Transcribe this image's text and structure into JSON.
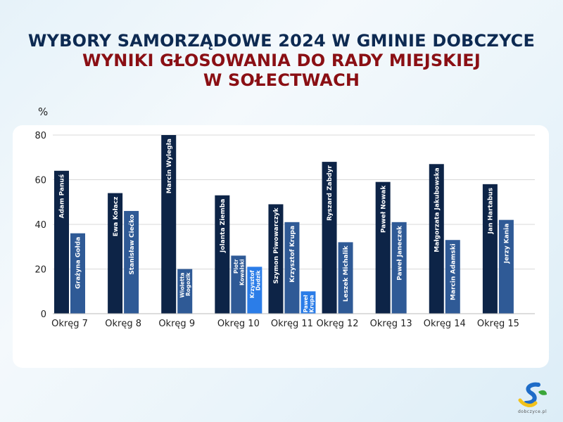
{
  "header": {
    "title_line1": "WYBORY SAMORZĄDOWE 2024 W GMINIE DOBCZYCE",
    "title_line2": "WYNIKI GŁOSOWANIA DO RADY MIEJSKIEJ",
    "title_line3": "W SOŁECTWACH"
  },
  "logo": {
    "text": "dobczyce.pl",
    "icon": "dobczyce-logo-icon"
  },
  "chart_data": {
    "type": "bar",
    "ylabel": "%",
    "ylim": [
      0,
      80
    ],
    "yticks": [
      0,
      20,
      40,
      60,
      80
    ],
    "grid": true,
    "legend": "none",
    "colors": {
      "winner": "#0d2447",
      "second": "#2f5a96",
      "third": "#2b7de8",
      "fourth": "#2f86f0"
    },
    "groups": [
      {
        "category": "Okręg 7",
        "bars": [
          {
            "label": "Adam Panuś",
            "value": 64
          },
          {
            "label": "Grażyna Gołda",
            "value": 36
          }
        ]
      },
      {
        "category": "Okręg 8",
        "bars": [
          {
            "label": "Ewa Kołacz",
            "value": 54
          },
          {
            "label": "Stanisław Ciećko",
            "value": 46
          }
        ]
      },
      {
        "category": "Okręg 9",
        "bars": [
          {
            "label": "Marcin Wyległa",
            "value": 80
          },
          {
            "label": "Wioletta Rogozik",
            "value": 20
          }
        ]
      },
      {
        "category": "Okręg 10",
        "bars": [
          {
            "label": "Jolanta Ziemba",
            "value": 53
          },
          {
            "label": "Piotr Kowalski",
            "value": 26
          },
          {
            "label": "Krzysztof Dudzik",
            "value": 21
          }
        ]
      },
      {
        "category": "Okręg 11",
        "bars": [
          {
            "label": "Szymon Piwowarczyk",
            "value": 49
          },
          {
            "label": "Krzysztof Krupa",
            "value": 41
          },
          {
            "label": "Paweł Krupa",
            "value": 10
          }
        ]
      },
      {
        "category": "Okręg 12",
        "bars": [
          {
            "label": "Ryszard Zabdyr",
            "value": 68
          },
          {
            "label": "Leszek Michalik",
            "value": 32
          }
        ]
      },
      {
        "category": "Okręg 13",
        "bars": [
          {
            "label": "Paweł Nowak",
            "value": 59
          },
          {
            "label": "Paweł Janeczek",
            "value": 41
          }
        ]
      },
      {
        "category": "Okręg 14",
        "bars": [
          {
            "label": "Małgorzata Jakubowska",
            "value": 67
          },
          {
            "label": "Marcin Adamski",
            "value": 33
          }
        ]
      },
      {
        "category": "Okręg 15",
        "bars": [
          {
            "label": "Jan Hartabus",
            "value": 58
          },
          {
            "label": "Jerzy Kania",
            "value": 42
          }
        ]
      }
    ]
  }
}
